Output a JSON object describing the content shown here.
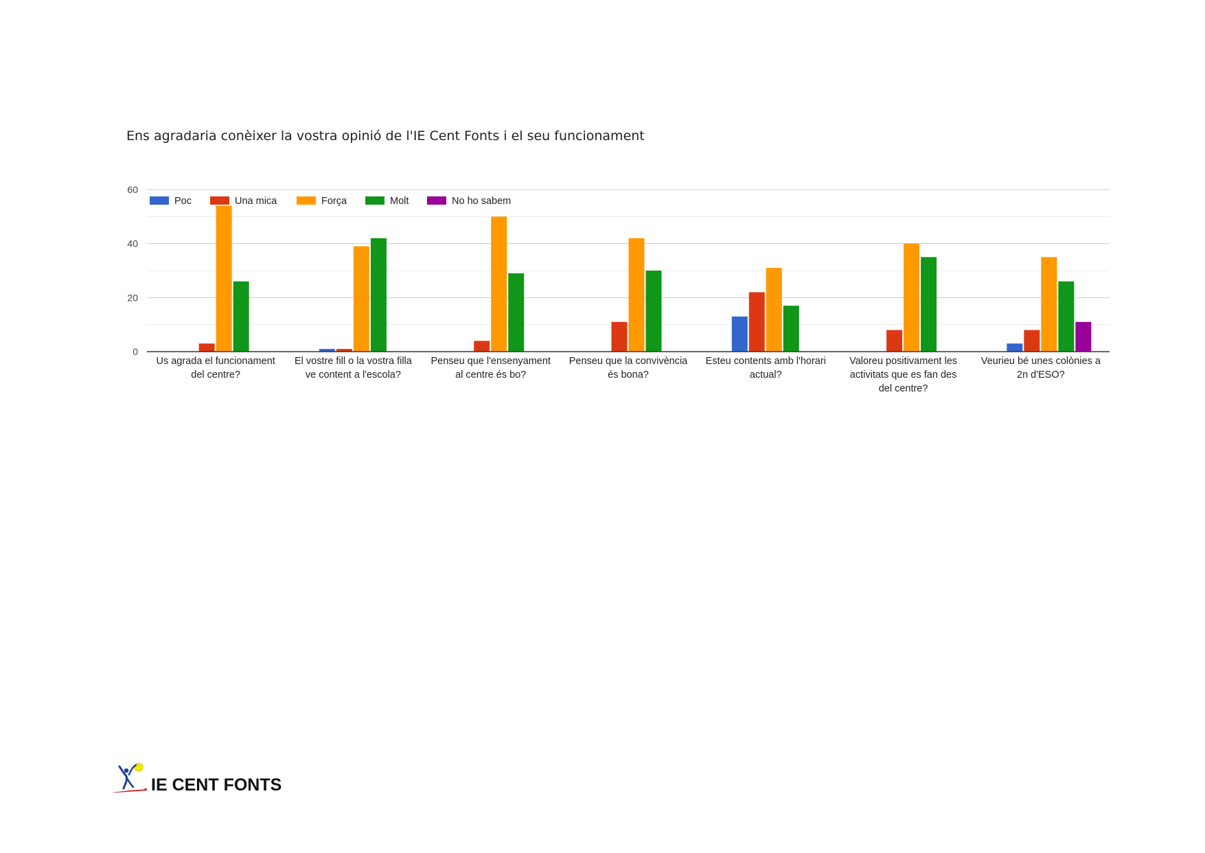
{
  "chart_data": {
    "type": "bar",
    "title": "Ens agradaria conèixer la vostra opinió de l'IE Cent Fonts i el seu funcionament",
    "xlabel": "",
    "ylabel": "",
    "ylim": [
      0,
      60
    ],
    "yticks": [
      "0",
      "20",
      "40",
      "60"
    ],
    "grid": true,
    "legend_position": "top-left",
    "categories": [
      [
        "Us agrada el funcionament",
        "del centre?"
      ],
      [
        "El vostre fill o la vostra filla",
        "ve content a l'escola?"
      ],
      [
        "Penseu que l'ensenyament",
        "al centre és bo?"
      ],
      [
        "Penseu que la convivència",
        "és bona?"
      ],
      [
        "Esteu contents amb l'horari",
        "actual?"
      ],
      [
        "Valoreu positivament les",
        "activitats que es fan des",
        "del centre?"
      ],
      [
        "Veurieu bé unes colònies a",
        "2n d'ESO?"
      ]
    ],
    "series": [
      {
        "name": "Poc",
        "color": "#3366cc",
        "values": [
          0,
          1,
          0,
          0,
          13,
          0,
          3
        ]
      },
      {
        "name": "Una mica",
        "color": "#dc3912",
        "values": [
          3,
          1,
          4,
          11,
          22,
          8,
          8
        ]
      },
      {
        "name": "Força",
        "color": "#ff9900",
        "values": [
          54,
          39,
          50,
          42,
          31,
          40,
          35
        ]
      },
      {
        "name": "Molt",
        "color": "#109618",
        "values": [
          26,
          42,
          29,
          30,
          17,
          35,
          26
        ]
      },
      {
        "name": "No ho sabem",
        "color": "#990099",
        "values": [
          0,
          0,
          0,
          0,
          0,
          0,
          11
        ]
      }
    ]
  },
  "footer": {
    "logo_text": "IE CENT FONTS"
  }
}
